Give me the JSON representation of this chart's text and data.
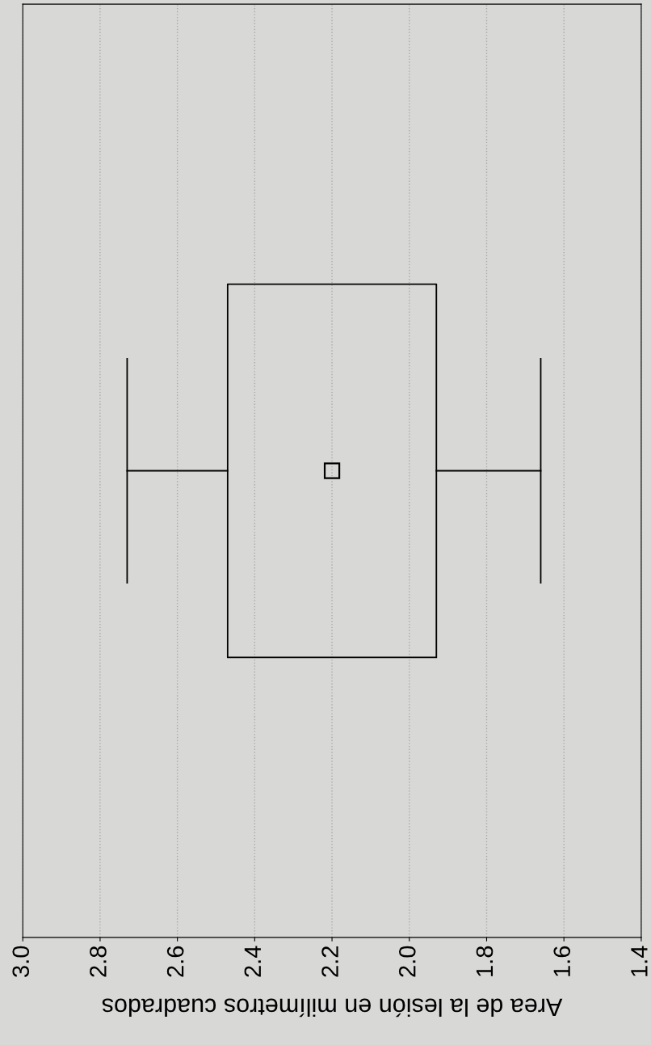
{
  "chart_data": {
    "type": "box",
    "orientation": "horizontal",
    "xlabel": "Area de la lesión en milímetros cuadrados",
    "categories": [
      null
    ],
    "boxes": [
      {
        "low": 1.66,
        "q1": 1.93,
        "q3": 2.47,
        "high": 2.73,
        "mean": 2.2
      }
    ],
    "xlim": [
      3.0,
      1.4
    ],
    "xticks": [
      {
        "value": 3,
        "label": "3.0"
      },
      2.8,
      2.6,
      2.4,
      2.2,
      {
        "value": 2,
        "label": "2.0"
      },
      1.8,
      1.6,
      1.4
    ],
    "grid": "x",
    "tick_labels": "x"
  }
}
